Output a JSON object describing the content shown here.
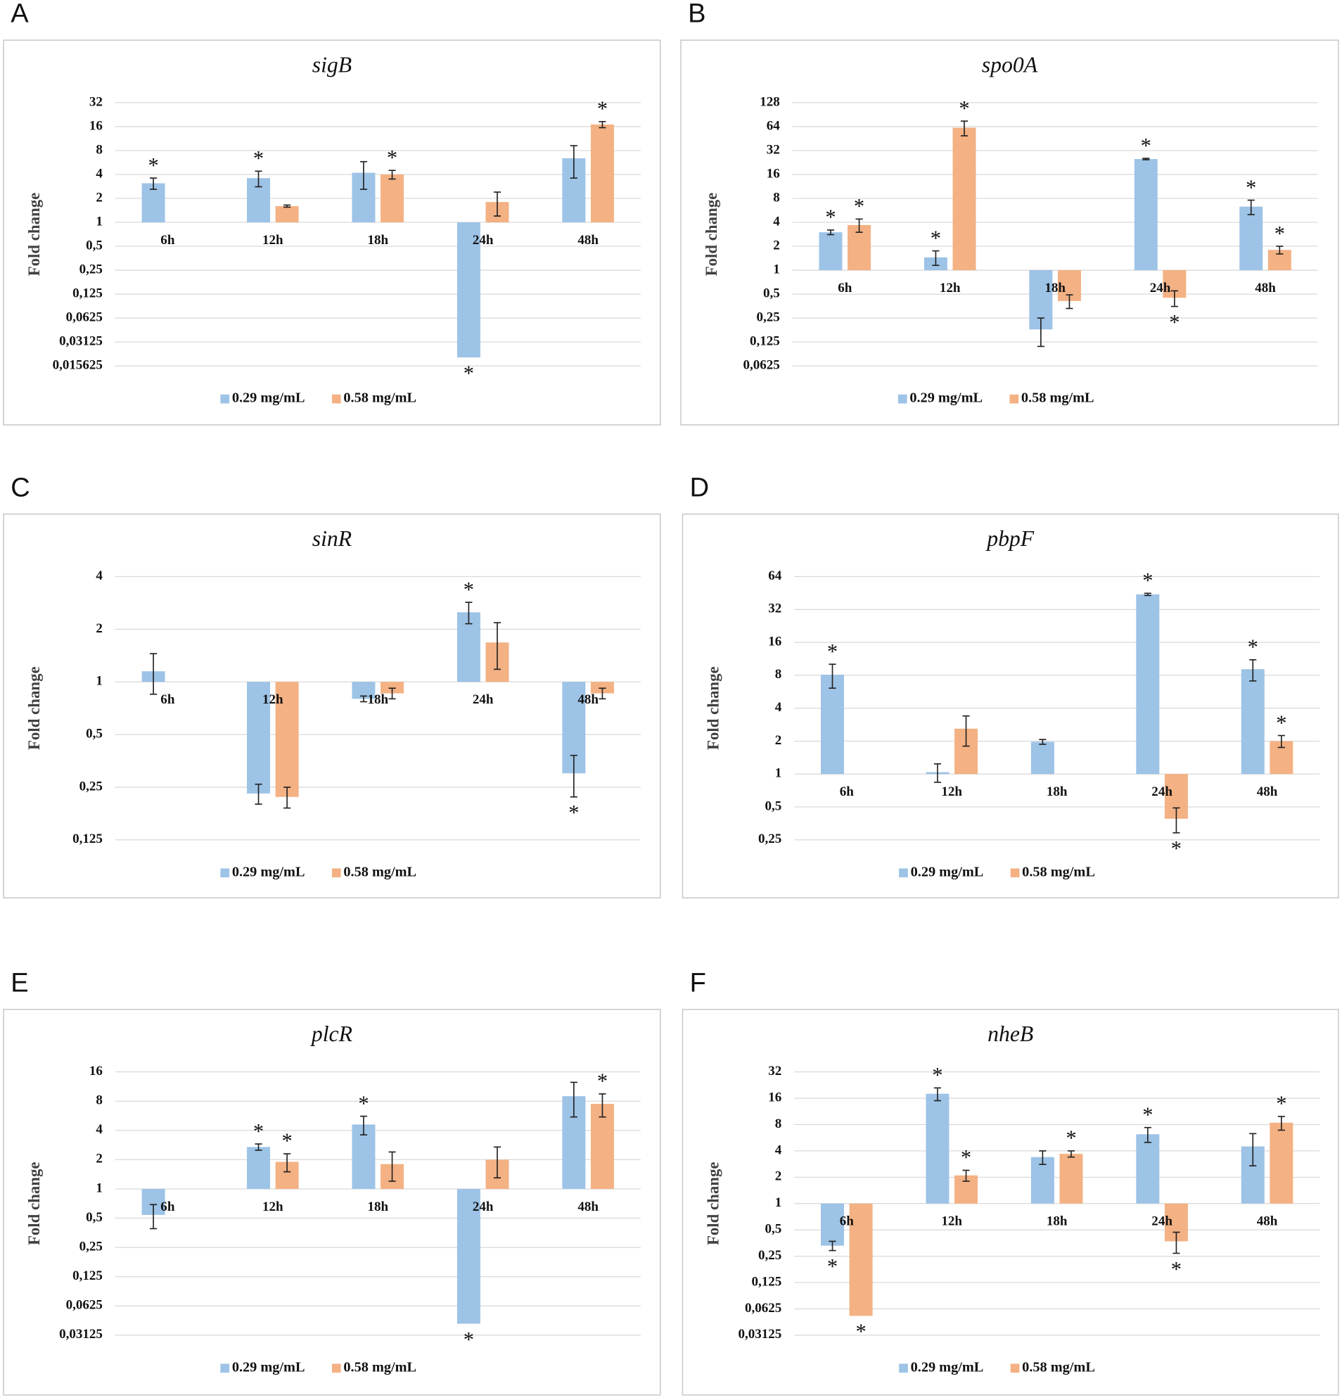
{
  "chart_data": [
    {
      "type": "bar",
      "label": "A",
      "title": "sigB",
      "y_label": "Fold change",
      "yscale": "log",
      "grid": true,
      "legend": "bottom",
      "categories": [
        "6h",
        "12h",
        "18h",
        "24h",
        "48h"
      ],
      "ylim": [
        0.015625,
        32
      ],
      "yticks": [
        {
          "value": 0.015625,
          "label": "0,015625"
        },
        {
          "value": 0.03125,
          "label": "0,03125"
        },
        {
          "value": 0.0625,
          "label": "0,0625"
        },
        {
          "value": 0.125,
          "label": "0,125"
        },
        {
          "value": 0.25,
          "label": "0,25"
        },
        {
          "value": 0.5,
          "label": "0,5"
        },
        1,
        2,
        4,
        8,
        16,
        32
      ],
      "series": [
        {
          "name": "0.29 mg/mL",
          "color": "#9dc3e6",
          "values": [
            3.1,
            3.6,
            4.2,
            0.02,
            6.4
          ],
          "errors": [
            0.5,
            0.8,
            1.6,
            null,
            2.8
          ],
          "annotations": [
            "*",
            "*",
            null,
            "*",
            null
          ]
        },
        {
          "name": "0.58 mg/mL",
          "color": "#f4b183",
          "values": [
            null,
            1.6,
            4.0,
            1.8,
            17
          ],
          "errors": [
            null,
            0.05,
            0.5,
            0.6,
            1.5
          ],
          "annotations": [
            null,
            null,
            "*",
            null,
            "*"
          ]
        }
      ]
    },
    {
      "type": "bar",
      "label": "B",
      "title": "spo0A",
      "y_label": "Fold change",
      "yscale": "log",
      "grid": true,
      "legend": "bottom",
      "categories": [
        "6h",
        "12h",
        "18h",
        "24h",
        "48h"
      ],
      "ylim": [
        0.0625,
        128
      ],
      "yticks": [
        {
          "value": 0.0625,
          "label": "0,0625"
        },
        {
          "value": 0.125,
          "label": "0,125"
        },
        {
          "value": 0.25,
          "label": "0,25"
        },
        {
          "value": 0.5,
          "label": "0,5"
        },
        1,
        2,
        4,
        8,
        16,
        32,
        64,
        128
      ],
      "series": [
        {
          "name": "0.29 mg/mL",
          "color": "#9dc3e6",
          "values": [
            3.0,
            1.45,
            0.18,
            25,
            6.3
          ],
          "errors": [
            0.2,
            0.3,
            0.07,
            0.5,
            1.3
          ],
          "annotations": [
            "*",
            "*",
            null,
            "*",
            "*"
          ]
        },
        {
          "name": "0.58 mg/mL",
          "color": "#f4b183",
          "values": [
            3.7,
            62,
            0.41,
            0.45,
            1.8
          ],
          "errors": [
            0.7,
            13,
            0.08,
            0.1,
            0.2
          ],
          "annotations": [
            "*",
            "*",
            null,
            "*",
            "*"
          ]
        }
      ]
    },
    {
      "type": "bar",
      "label": "C",
      "title": "sinR",
      "y_label": "Fold change",
      "yscale": "log",
      "grid": true,
      "legend": "bottom",
      "categories": [
        "6h",
        "12h",
        "18h",
        "24h",
        "48h"
      ],
      "ylim": [
        0.125,
        4
      ],
      "yticks": [
        {
          "value": 0.125,
          "label": "0,125"
        },
        {
          "value": 0.25,
          "label": "0,25"
        },
        {
          "value": 0.5,
          "label": "0,5"
        },
        1,
        2,
        4
      ],
      "series": [
        {
          "name": "0.29 mg/mL",
          "color": "#9dc3e6",
          "values": [
            1.15,
            0.23,
            0.8,
            2.5,
            0.3
          ],
          "errors": [
            0.3,
            0.03,
            0.03,
            0.35,
            0.08
          ],
          "annotations": [
            null,
            null,
            null,
            "*",
            "*"
          ]
        },
        {
          "name": "0.58 mg/mL",
          "color": "#f4b183",
          "values": [
            null,
            0.22,
            0.86,
            1.68,
            0.86
          ],
          "errors": [
            null,
            0.03,
            0.06,
            0.5,
            0.06
          ],
          "annotations": [
            null,
            null,
            null,
            null,
            null
          ]
        }
      ]
    },
    {
      "type": "bar",
      "label": "D",
      "title": "pbpF",
      "y_label": "Fold change",
      "yscale": "log",
      "grid": true,
      "legend": "bottom",
      "categories": [
        "6h",
        "12h",
        "18h",
        "24h",
        "48h"
      ],
      "ylim": [
        0.25,
        64
      ],
      "yticks": [
        {
          "value": 0.25,
          "label": "0,25"
        },
        {
          "value": 0.5,
          "label": "0,5"
        },
        1,
        2,
        4,
        8,
        16,
        32,
        64
      ],
      "series": [
        {
          "name": "0.29 mg/mL",
          "color": "#9dc3e6",
          "values": [
            8.1,
            1.04,
            1.97,
            44,
            9.1
          ],
          "errors": [
            2,
            0.2,
            0.1,
            1,
            2
          ],
          "annotations": [
            "*",
            null,
            null,
            "*",
            "*"
          ]
        },
        {
          "name": "0.58 mg/mL",
          "color": "#f4b183",
          "values": [
            null,
            2.6,
            null,
            0.39,
            2.0
          ],
          "errors": [
            null,
            0.8,
            null,
            0.1,
            0.25
          ],
          "annotations": [
            null,
            null,
            null,
            "*",
            "*"
          ]
        }
      ]
    },
    {
      "type": "bar",
      "label": "E",
      "title": "plcR",
      "y_label": "Fold change",
      "yscale": "log",
      "grid": true,
      "legend": "bottom",
      "categories": [
        "6h",
        "12h",
        "18h",
        "24h",
        "48h"
      ],
      "ylim": [
        0.03125,
        16
      ],
      "yticks": [
        {
          "value": 0.03125,
          "label": "0,03125"
        },
        {
          "value": 0.0625,
          "label": "0,0625"
        },
        {
          "value": 0.125,
          "label": "0,125"
        },
        {
          "value": 0.25,
          "label": "0,25"
        },
        {
          "value": 0.5,
          "label": "0,5"
        },
        1,
        2,
        4,
        8,
        16
      ],
      "series": [
        {
          "name": "0.29 mg/mL",
          "color": "#9dc3e6",
          "values": [
            0.54,
            2.7,
            4.6,
            0.041,
            9
          ],
          "errors": [
            0.15,
            0.2,
            1,
            null,
            3.5
          ],
          "annotations": [
            null,
            "*",
            "*",
            "*",
            null
          ]
        },
        {
          "name": "0.58 mg/mL",
          "color": "#f4b183",
          "values": [
            null,
            1.9,
            1.8,
            2.0,
            7.5
          ],
          "errors": [
            null,
            0.4,
            0.6,
            0.7,
            2
          ],
          "annotations": [
            null,
            "*",
            null,
            null,
            "*"
          ]
        }
      ]
    },
    {
      "type": "bar",
      "label": "F",
      "title": "nheB",
      "y_label": "Fold change",
      "yscale": "log",
      "grid": true,
      "legend": "bottom",
      "categories": [
        "6h",
        "12h",
        "18h",
        "24h",
        "48h"
      ],
      "ylim": [
        0.03125,
        32
      ],
      "yticks": [
        {
          "value": 0.03125,
          "label": "0,03125"
        },
        {
          "value": 0.0625,
          "label": "0,0625"
        },
        {
          "value": 0.125,
          "label": "0,125"
        },
        {
          "value": 0.25,
          "label": "0,25"
        },
        {
          "value": 0.5,
          "label": "0,5"
        },
        1,
        2,
        4,
        8,
        16,
        32
      ],
      "series": [
        {
          "name": "0.29 mg/mL",
          "color": "#9dc3e6",
          "values": [
            0.33,
            18,
            3.4,
            6.2,
            4.5
          ],
          "errors": [
            0.04,
            3,
            0.6,
            1.2,
            1.8
          ],
          "annotations": [
            "*",
            "*",
            null,
            "*",
            null
          ]
        },
        {
          "name": "0.58 mg/mL",
          "color": "#f4b183",
          "values": [
            0.052,
            2.1,
            3.7,
            0.37,
            8.4
          ],
          "errors": [
            null,
            0.3,
            0.3,
            0.1,
            1.5
          ],
          "annotations": [
            "*",
            "*",
            "*",
            "*",
            "*"
          ]
        }
      ]
    }
  ]
}
